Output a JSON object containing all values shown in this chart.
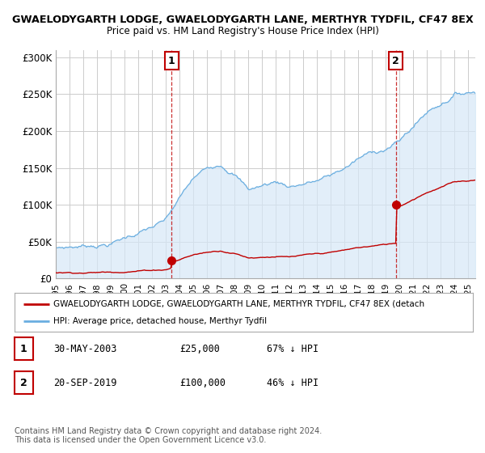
{
  "title_line1": "GWAELODYGARTH LODGE, GWAELODYGARTH LANE, MERTHYR TYDFIL, CF47 8EX",
  "title_line2": "Price paid vs. HM Land Registry's House Price Index (HPI)",
  "ylabel_ticks": [
    "£0",
    "£50K",
    "£100K",
    "£150K",
    "£200K",
    "£250K",
    "£300K"
  ],
  "ytick_values": [
    0,
    50000,
    100000,
    150000,
    200000,
    250000,
    300000
  ],
  "ylim": [
    0,
    310000
  ],
  "xlim_start": 1995.0,
  "xlim_end": 2025.5,
  "hpi_color": "#6aaee0",
  "hpi_fill_color": "#d6e8f7",
  "price_color": "#c00000",
  "point1_x": 2003.42,
  "point1_y": 25000,
  "point2_x": 2019.72,
  "point2_y": 100000,
  "legend_line1": "GWAELODYGARTH LODGE, GWAELODYGARTH LANE, MERTHYR TYDFIL, CF47 8EX (detach",
  "legend_line2": "HPI: Average price, detached house, Merthyr Tydfil",
  "table_row1": [
    "1",
    "30-MAY-2003",
    "£25,000",
    "67% ↓ HPI"
  ],
  "table_row2": [
    "2",
    "20-SEP-2019",
    "£100,000",
    "46% ↓ HPI"
  ],
  "footer_text": "Contains HM Land Registry data © Crown copyright and database right 2024.\nThis data is licensed under the Open Government Licence v3.0.",
  "background_color": "#ffffff",
  "grid_color": "#cccccc"
}
